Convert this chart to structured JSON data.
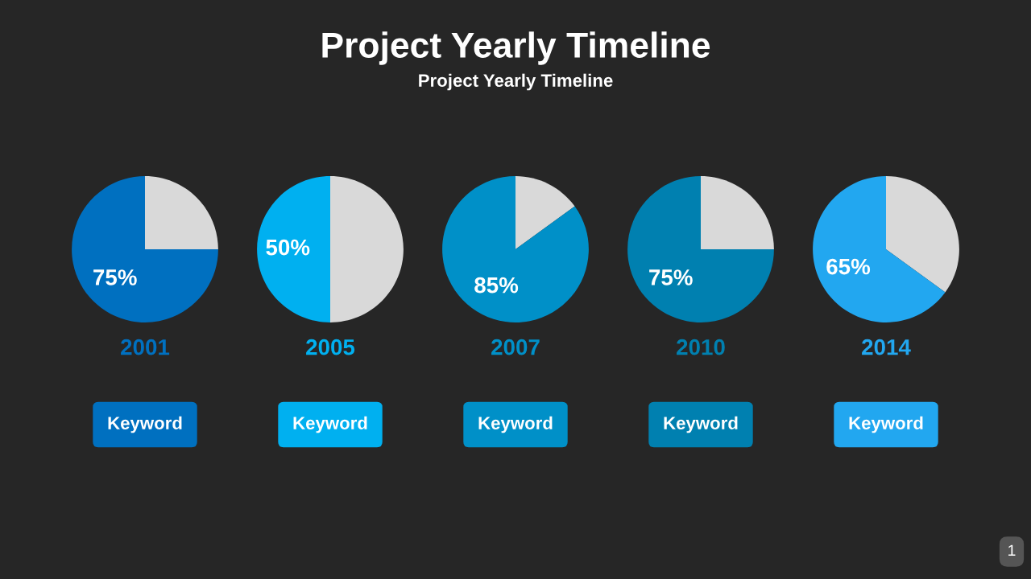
{
  "chart_data": [
    {
      "type": "other",
      "title": "Project Yearly Timeline",
      "subtitle": "Project Yearly Timeline",
      "annotations": [
        "1"
      ]
    },
    {
      "type": "pie",
      "categories": [
        null,
        null
      ],
      "values": [
        25,
        75
      ],
      "colors": [
        "#d9d9d9",
        "#0070c0"
      ],
      "value_labels": [
        null,
        "75%"
      ],
      "xlabel": "2001",
      "annotations": [
        "Keyword"
      ]
    },
    {
      "type": "pie",
      "categories": [
        null,
        null
      ],
      "values": [
        50,
        50
      ],
      "colors": [
        "#d9d9d9",
        "#00b0f0"
      ],
      "value_labels": [
        null,
        "50%"
      ],
      "xlabel": "2005",
      "annotations": [
        "Keyword"
      ]
    },
    {
      "type": "pie",
      "categories": [
        null,
        null
      ],
      "values": [
        15,
        85
      ],
      "colors": [
        "#d9d9d9",
        "#0090c8"
      ],
      "value_labels": [
        null,
        "85%"
      ],
      "xlabel": "2007",
      "annotations": [
        "Keyword"
      ]
    },
    {
      "type": "pie",
      "categories": [
        null,
        null
      ],
      "values": [
        25,
        75
      ],
      "colors": [
        "#d9d9d9",
        "#0080b0"
      ],
      "value_labels": [
        null,
        "75%"
      ],
      "xlabel": "2010",
      "annotations": [
        "Keyword"
      ]
    },
    {
      "type": "pie",
      "categories": [
        null,
        null
      ],
      "values": [
        35,
        65
      ],
      "colors": [
        "#d9d9d9",
        "#22a7f0"
      ],
      "value_labels": [
        null,
        "65%"
      ],
      "xlabel": "2014",
      "annotations": [
        "Keyword"
      ]
    }
  ]
}
